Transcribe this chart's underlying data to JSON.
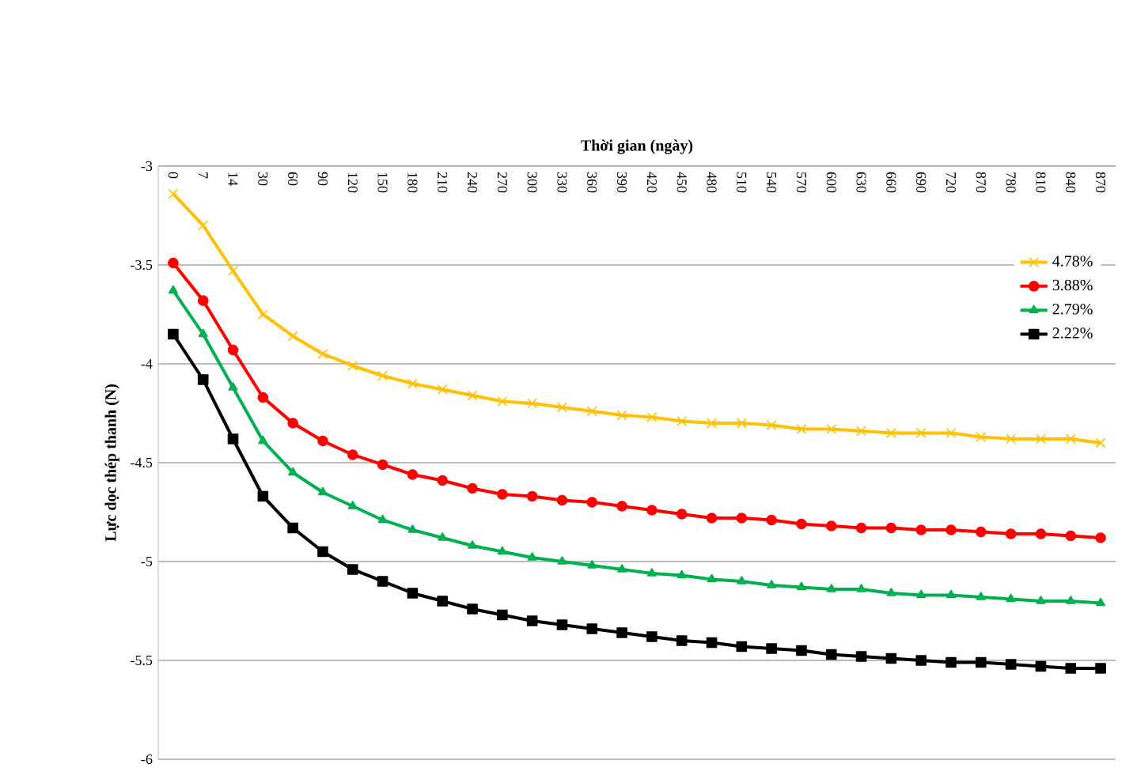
{
  "chart_data": {
    "type": "line",
    "xlabel": "Thời gian (ngày)",
    "ylabel": "Lực dọc thép thanh (N)",
    "categories": [
      "0",
      "7",
      "14",
      "30",
      "60",
      "90",
      "120",
      "150",
      "180",
      "210",
      "240",
      "270",
      "300",
      "330",
      "360",
      "390",
      "420",
      "450",
      "480",
      "510",
      "540",
      "570",
      "600",
      "630",
      "660",
      "690",
      "720",
      "870",
      "780",
      "810",
      "840",
      "870"
    ],
    "ylim": [
      -6,
      -3
    ],
    "yticks": [
      -3,
      -3.5,
      -4,
      -4.5,
      -5,
      -5.5,
      -6
    ],
    "grid": "y",
    "legend": "top right",
    "series": [
      {
        "name": "4.78%",
        "color": "#ffc000",
        "marker": "cross",
        "values": [
          -3.14,
          -3.3,
          -3.53,
          -3.75,
          -3.86,
          -3.95,
          -4.01,
          -4.06,
          -4.1,
          -4.13,
          -4.16,
          -4.19,
          -4.2,
          -4.22,
          -4.24,
          -4.26,
          -4.27,
          -4.29,
          -4.3,
          -4.3,
          -4.31,
          -4.33,
          -4.33,
          -4.34,
          -4.35,
          -4.35,
          -4.35,
          -4.37,
          -4.38,
          -4.38,
          -4.38,
          -4.4
        ]
      },
      {
        "name": "3.88%",
        "color": "#ff0000",
        "marker": "circle",
        "values": [
          -3.49,
          -3.68,
          -3.93,
          -4.17,
          -4.3,
          -4.39,
          -4.46,
          -4.51,
          -4.56,
          -4.59,
          -4.63,
          -4.66,
          -4.67,
          -4.69,
          -4.7,
          -4.72,
          -4.74,
          -4.76,
          -4.78,
          -4.78,
          -4.79,
          -4.81,
          -4.82,
          -4.83,
          -4.83,
          -4.84,
          -4.84,
          -4.85,
          -4.86,
          -4.86,
          -4.87,
          -4.88
        ]
      },
      {
        "name": "2.79%",
        "color": "#00b050",
        "marker": "triangle",
        "values": [
          -3.63,
          -3.85,
          -4.12,
          -4.39,
          -4.55,
          -4.65,
          -4.72,
          -4.79,
          -4.84,
          -4.88,
          -4.92,
          -4.95,
          -4.98,
          -5.0,
          -5.02,
          -5.04,
          -5.06,
          -5.07,
          -5.09,
          -5.1,
          -5.12,
          -5.13,
          -5.14,
          -5.14,
          -5.16,
          -5.17,
          -5.17,
          -5.18,
          -5.19,
          -5.2,
          -5.2,
          -5.21
        ]
      },
      {
        "name": "2.22%",
        "color": "#000000",
        "marker": "square",
        "values": [
          -3.85,
          -4.08,
          -4.38,
          -4.67,
          -4.83,
          -4.95,
          -5.04,
          -5.1,
          -5.16,
          -5.2,
          -5.24,
          -5.27,
          -5.3,
          -5.32,
          -5.34,
          -5.36,
          -5.38,
          -5.4,
          -5.41,
          -5.43,
          -5.44,
          -5.45,
          -5.47,
          -5.48,
          -5.49,
          -5.5,
          -5.51,
          -5.51,
          -5.52,
          -5.53,
          -5.54,
          -5.54
        ]
      }
    ]
  }
}
